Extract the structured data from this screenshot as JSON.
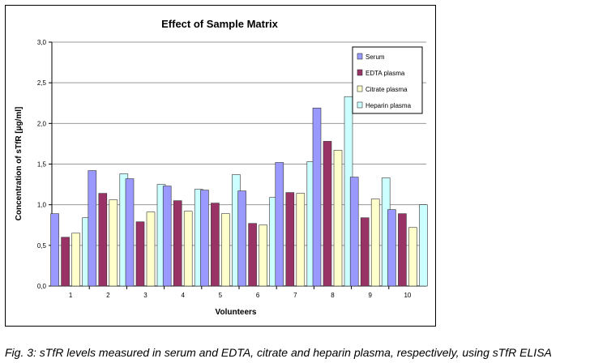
{
  "chart_data": {
    "type": "bar",
    "title": "Effect of Sample Matrix",
    "xlabel": "Volunteers",
    "ylabel": "Concentration of sTfR [µg/ml]",
    "categories": [
      "1",
      "2",
      "3",
      "4",
      "5",
      "6",
      "7",
      "8",
      "9",
      "10"
    ],
    "ylim": [
      0,
      3.0
    ],
    "yticks": [
      "0,0",
      "0,5",
      "1,0",
      "1,5",
      "2,0",
      "2,5",
      "3,0"
    ],
    "ytick_values": [
      0,
      0.5,
      1.0,
      1.5,
      2.0,
      2.5,
      3.0
    ],
    "grid": true,
    "legend_position": "top-right",
    "series": [
      {
        "name": "Serum",
        "color": "#9999ff",
        "values": [
          0.89,
          1.42,
          1.32,
          1.23,
          1.18,
          1.17,
          1.52,
          2.19,
          1.34,
          0.94
        ]
      },
      {
        "name": "EDTA plasma",
        "color": "#993366",
        "values": [
          0.6,
          1.14,
          0.79,
          1.05,
          1.02,
          0.77,
          1.15,
          1.78,
          0.84,
          0.89
        ]
      },
      {
        "name": "Citrate plasma",
        "color": "#ffffcc",
        "values": [
          0.65,
          1.06,
          0.91,
          0.92,
          0.89,
          0.75,
          1.14,
          1.67,
          1.07,
          0.72
        ]
      },
      {
        "name": "Heparin plasma",
        "color": "#ccffff",
        "values": [
          0.84,
          1.38,
          1.25,
          1.19,
          1.37,
          1.09,
          1.53,
          2.33,
          1.33,
          1.0
        ]
      }
    ]
  },
  "caption": "Fig. 3: sTfR levels measured in serum and EDTA, citrate and heparin plasma, respectively, using sTfR ELISA"
}
